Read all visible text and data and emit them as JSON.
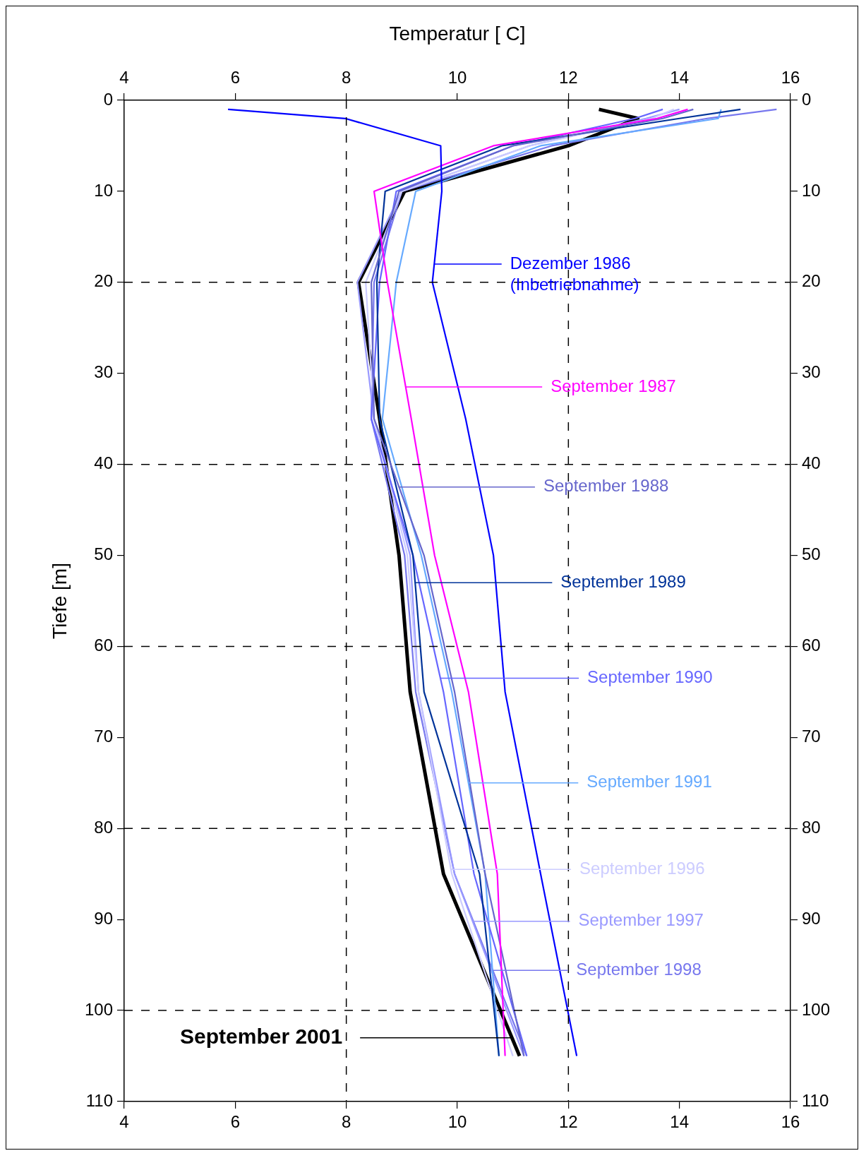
{
  "chart_data": {
    "type": "line",
    "xlabel": "Temperatur [ C]",
    "ylabel": "Tiefe [m]",
    "xlim": [
      4,
      16
    ],
    "xticks": [
      4,
      6,
      8,
      10,
      12,
      14,
      16
    ],
    "x2lim": [
      4,
      16
    ],
    "x2ticks": [
      4,
      6,
      8,
      10,
      12,
      14,
      16
    ],
    "ylim": [
      110,
      0
    ],
    "yticks": [
      0,
      10,
      20,
      30,
      40,
      50,
      60,
      70,
      80,
      90,
      100,
      110
    ],
    "y2lim": [
      110,
      0
    ],
    "y2ticks": [
      0,
      10,
      20,
      30,
      40,
      50,
      60,
      70,
      80,
      90,
      100,
      110
    ],
    "legend": "right",
    "grid": false,
    "ref_lines": [
      {
        "axis": "x",
        "value": 8,
        "line_style": "dashed",
        "color": "#000000"
      },
      {
        "axis": "x",
        "value": 12,
        "line_style": "dashed",
        "color": "#000000"
      },
      {
        "axis": "y",
        "value": 20,
        "line_style": "dashed",
        "color": "#000000"
      },
      {
        "axis": "y",
        "value": 40,
        "line_style": "dashed",
        "color": "#000000"
      },
      {
        "axis": "y",
        "value": 60,
        "line_style": "dashed",
        "color": "#000000"
      },
      {
        "axis": "y",
        "value": 80,
        "line_style": "dashed",
        "color": "#000000"
      },
      {
        "axis": "y",
        "value": 100,
        "line_style": "dashed",
        "color": "#000000"
      }
    ],
    "series": [
      {
        "name": "Dezember 1986\n(Inbetriebnahme)",
        "color": "#0000ff",
        "x": [
          5.87,
          7.98,
          9.7,
          9.72,
          9.55,
          10.15,
          10.65,
          10.86,
          11.5,
          12.15
        ],
        "values": [
          1,
          2,
          5,
          10,
          20,
          35,
          50,
          65,
          85,
          105
        ]
      },
      {
        "name": "September 1987",
        "color": "#ff00ff",
        "x": [
          14.15,
          13.6,
          10.65,
          8.5,
          8.74,
          9.17,
          9.59,
          10.2,
          10.72,
          10.86
        ],
        "values": [
          1,
          2,
          5,
          10,
          20,
          35,
          50,
          65,
          85,
          105
        ]
      },
      {
        "name": "September 1988",
        "color": "#6666cc",
        "x": [
          14.25,
          13.7,
          11.0,
          8.95,
          8.45,
          8.5,
          9.4,
          9.95,
          10.5,
          11.2
        ],
        "values": [
          1,
          2,
          5,
          10,
          20,
          35,
          50,
          65,
          85,
          105
        ]
      },
      {
        "name": "September 1989",
        "color": "#003399",
        "x": [
          15.1,
          14.0,
          10.8,
          8.7,
          8.55,
          8.6,
          9.2,
          9.4,
          10.4,
          10.75
        ],
        "values": [
          1,
          2,
          5,
          10,
          20,
          35,
          50,
          65,
          85,
          105
        ]
      },
      {
        "name": "September 1990",
        "color": "#6666ff",
        "x": [
          13.7,
          13.2,
          11.0,
          8.9,
          8.6,
          8.45,
          9.2,
          9.75,
          10.3,
          11.25
        ],
        "values": [
          1,
          2,
          5,
          10,
          20,
          35,
          50,
          65,
          85,
          105
        ]
      },
      {
        "name": "September 1991",
        "color": "#66aaff",
        "x": [
          14.75,
          14.7,
          11.5,
          9.25,
          8.9,
          8.65,
          9.35,
          9.9,
          10.5,
          10.75
        ],
        "values": [
          1,
          2,
          5,
          10,
          20,
          35,
          50,
          65,
          85,
          105
        ]
      },
      {
        "name": "September 1996",
        "color": "#ccccff",
        "x": [
          13.9,
          13.5,
          11.3,
          9.0,
          8.35,
          8.5,
          9.1,
          9.3,
          9.9,
          11.0
        ],
        "values": [
          1,
          2,
          5,
          10,
          20,
          35,
          50,
          65,
          85,
          105
        ]
      },
      {
        "name": "September 1997",
        "color": "#9999ff",
        "x": [
          14.0,
          13.4,
          11.3,
          9.0,
          8.2,
          8.5,
          9.15,
          9.3,
          9.95,
          11.2
        ],
        "values": [
          1,
          2,
          5,
          10,
          20,
          35,
          50,
          65,
          85,
          105
        ]
      },
      {
        "name": "September 1998",
        "color": "#7777ee",
        "x": [
          15.75,
          14.5,
          11.7,
          9.0,
          8.5,
          8.45,
          9.05,
          9.25,
          9.95,
          11.25
        ],
        "values": [
          1,
          2,
          5,
          10,
          20,
          35,
          50,
          65,
          85,
          105
        ]
      },
      {
        "name": "September 2001",
        "color": "#000000",
        "x": [
          12.55,
          13.25,
          12.0,
          9.05,
          8.22,
          8.6,
          8.95,
          9.15,
          9.75,
          11.12
        ],
        "values": [
          1,
          2,
          5,
          10,
          20,
          35,
          50,
          65,
          85,
          105
        ]
      }
    ]
  }
}
